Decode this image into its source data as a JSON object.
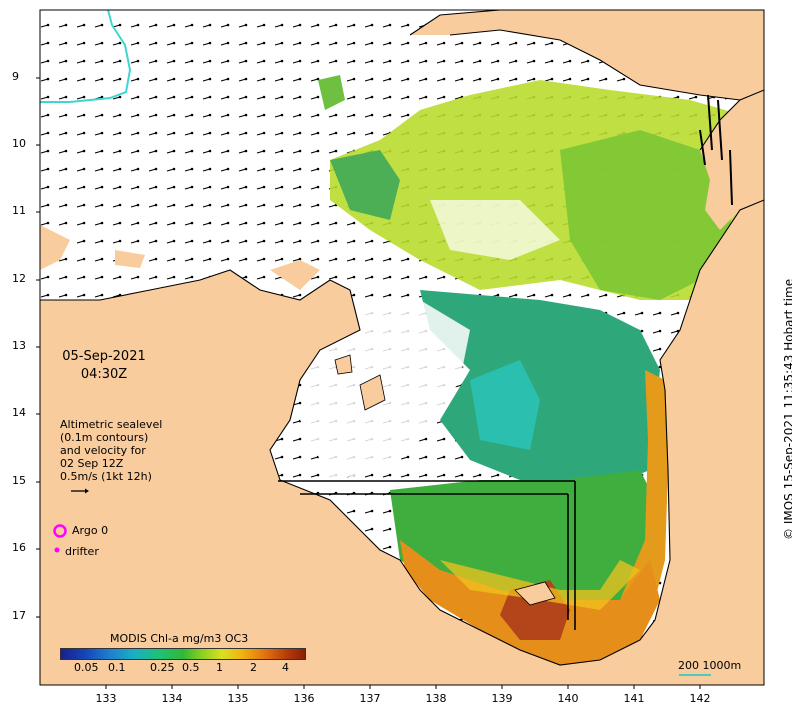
{
  "map": {
    "lat_ticks": [
      "9",
      "10",
      "11",
      "12",
      "13",
      "14",
      "15",
      "16",
      "17"
    ],
    "lon_ticks": [
      "133",
      "134",
      "135",
      "136",
      "137",
      "138",
      "139",
      "140",
      "141",
      "142"
    ],
    "land_color": "#f9cc9e",
    "ocean_color": "#ffffff"
  },
  "labels": {
    "date": "05-Sep-2021",
    "time": "04:30Z",
    "info_line1": "Altimetric sealevel",
    "info_line2": "(0.1m contours)",
    "info_line3": "and velocity for",
    "info_line4": "02 Sep 12Z",
    "info_line5": "0.5m/s (1kt 12h)",
    "argo": "Argo 0",
    "drifter": "drifter",
    "colorbar_title": "MODIS Chl-a mg/m3 OC3",
    "colorbar_ticks": [
      "0.05",
      "0.1",
      "0.25",
      "0.5",
      "1",
      "2",
      "4"
    ],
    "credit": "© IMOS 15-Sep-2021 11:35:43 Hobart time",
    "scale_200": "200",
    "scale_1000": "1000m"
  },
  "colors": {
    "argo": "#ff00ff",
    "drifter": "#ff00ff",
    "scale_line": "#4ec9c0",
    "bathy_contour": "#3fd6d0"
  }
}
